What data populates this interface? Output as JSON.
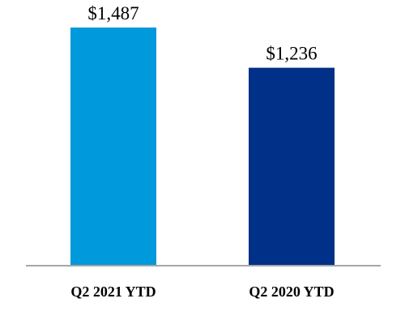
{
  "chart_data": {
    "type": "bar",
    "categories": [
      "Q2 2021 YTD",
      "Q2 2020 YTD"
    ],
    "values": [
      1487,
      1236
    ],
    "value_labels": [
      "$1,487",
      "$1,236"
    ],
    "colors": [
      "#0099DC",
      "#003087"
    ],
    "axis_color": "#A6A6A6",
    "title": "",
    "xlabel": "",
    "ylabel": "",
    "ylim": [
      0,
      1487
    ],
    "grid": false,
    "legend": "none"
  }
}
